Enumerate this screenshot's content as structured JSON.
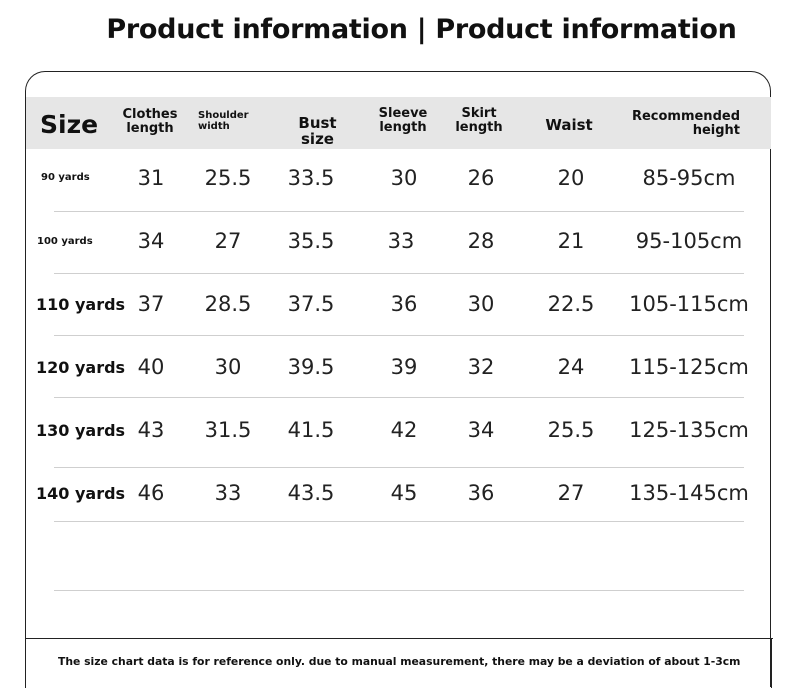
{
  "title": "Product information | Product information",
  "headers": {
    "size": "Size",
    "clothes_length": [
      "Clothes",
      "length"
    ],
    "shoulder_width": [
      "Shoulder",
      "width"
    ],
    "bust_size": "Bust size",
    "sleeve_length": [
      "Sleeve",
      "length"
    ],
    "skirt_length": [
      "Skirt",
      "length"
    ],
    "waist": "Waist",
    "recommended_height": [
      "Recommended",
      "height"
    ]
  },
  "rows": [
    {
      "size": "90 yards",
      "clothes": "31",
      "shoulder": "25.5",
      "bust": "33.5",
      "sleeve": "30",
      "skirt": "26",
      "waist": "20",
      "height": "85-95cm"
    },
    {
      "size": "100 yards",
      "clothes": "34",
      "shoulder": "27",
      "bust": "35.5",
      "sleeve": "33",
      "skirt": "28",
      "waist": "21",
      "height": "95-105cm"
    },
    {
      "size": "110 yards",
      "clothes": "37",
      "shoulder": "28.5",
      "bust": "37.5",
      "sleeve": "36",
      "skirt": "30",
      "waist": "22.5",
      "height": "105-115cm"
    },
    {
      "size": "120 yards",
      "clothes": "40",
      "shoulder": "30",
      "bust": "39.5",
      "sleeve": "39",
      "skirt": "32",
      "waist": "24",
      "height": "115-125cm"
    },
    {
      "size": "130 yards",
      "clothes": "43",
      "shoulder": "31.5",
      "bust": "41.5",
      "sleeve": "42",
      "skirt": "34",
      "waist": "25.5",
      "height": "125-135cm"
    },
    {
      "size": "140 yards",
      "clothes": "46",
      "shoulder": "33",
      "bust": "43.5",
      "sleeve": "45",
      "skirt": "36",
      "waist": "27",
      "height": "135-145cm"
    }
  ],
  "footer_note": "The size chart data is for reference only. due to manual measurement, there may be a deviation of about 1-3cm"
}
